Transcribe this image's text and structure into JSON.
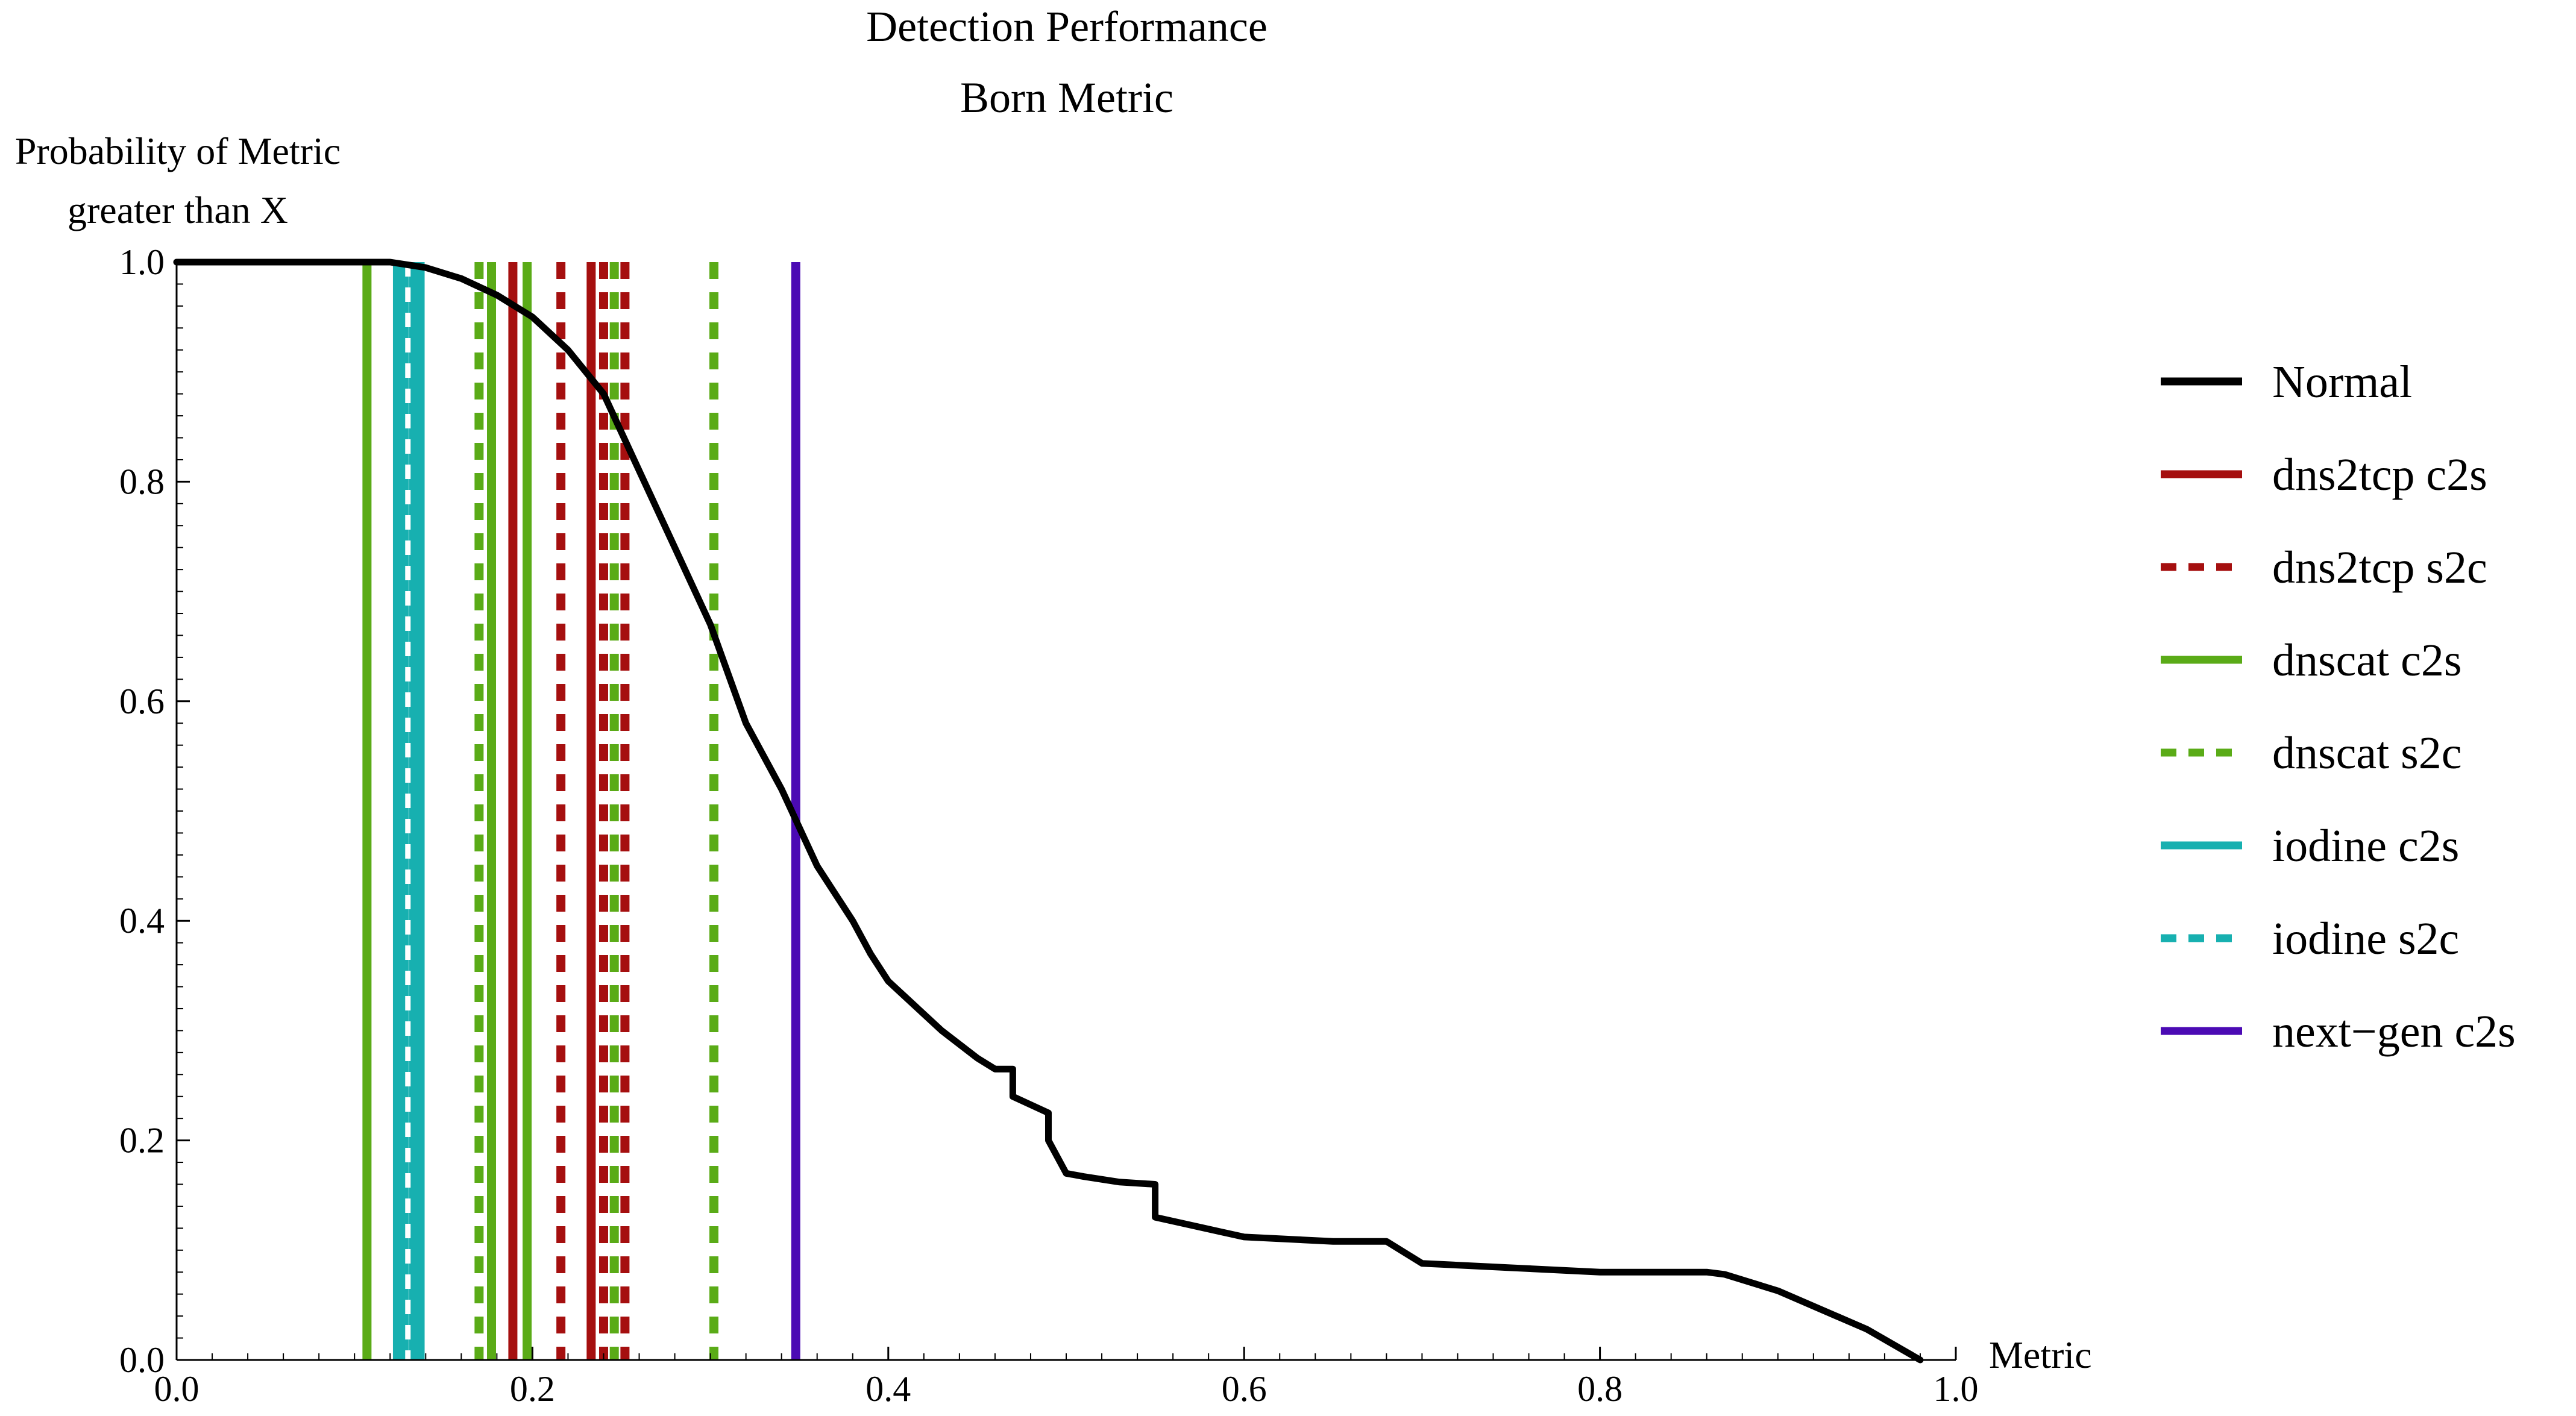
{
  "chart_data": {
    "type": "line",
    "title": "Detection Performance",
    "subtitle": "Born Metric",
    "xlabel": "Metric",
    "ylabel_line1": "Probability of Metric",
    "ylabel_line2": "greater than X",
    "xlim": [
      0,
      1.0
    ],
    "ylim": [
      0,
      1.0
    ],
    "x_ticks": [
      0.0,
      0.2,
      0.4,
      0.6,
      0.8,
      1.0
    ],
    "x_tick_labels": [
      "0.0",
      "0.2",
      "0.4",
      "0.6",
      "0.8",
      "1.0"
    ],
    "y_ticks": [
      0.0,
      0.2,
      0.4,
      0.6,
      0.8,
      1.0
    ],
    "y_tick_labels": [
      "0.0",
      "0.2",
      "0.4",
      "0.6",
      "0.8",
      "1.0"
    ],
    "grid": false,
    "legend_position": "right",
    "legend": [
      {
        "name": "Normal",
        "color": "#000000",
        "dashed": false
      },
      {
        "name": "dns2tcp c2s",
        "color": "#a50f0f",
        "dashed": false
      },
      {
        "name": "dns2tcp s2c",
        "color": "#a50f0f",
        "dashed": true
      },
      {
        "name": "dnscat c2s",
        "color": "#5aab17",
        "dashed": false
      },
      {
        "name": "dnscat s2c",
        "color": "#5aab17",
        "dashed": true
      },
      {
        "name": "iodine c2s",
        "color": "#17b0b0",
        "dashed": false
      },
      {
        "name": "iodine s2c",
        "color": "#17b0b0",
        "dashed": true
      },
      {
        "name": "next−gen c2s",
        "color": "#4b0ab4",
        "dashed": false
      }
    ],
    "normal_curve": {
      "x": [
        0.0,
        0.1,
        0.12,
        0.14,
        0.16,
        0.18,
        0.2,
        0.22,
        0.24,
        0.26,
        0.28,
        0.3,
        0.32,
        0.34,
        0.36,
        0.38,
        0.39,
        0.4,
        0.41,
        0.43,
        0.45,
        0.46,
        0.47,
        0.47,
        0.49,
        0.49,
        0.5,
        0.51,
        0.53,
        0.55,
        0.55,
        0.6,
        0.65,
        0.68,
        0.7,
        0.75,
        0.8,
        0.86,
        0.87,
        0.9,
        0.95,
        0.98
      ],
      "y": [
        1.0,
        1.0,
        1.0,
        0.995,
        0.985,
        0.97,
        0.95,
        0.92,
        0.88,
        0.81,
        0.74,
        0.67,
        0.58,
        0.52,
        0.45,
        0.4,
        0.37,
        0.345,
        0.33,
        0.3,
        0.275,
        0.265,
        0.265,
        0.24,
        0.225,
        0.2,
        0.17,
        0.167,
        0.162,
        0.16,
        0.13,
        0.112,
        0.108,
        0.108,
        0.088,
        0.084,
        0.08,
        0.08,
        0.078,
        0.063,
        0.028,
        0.0
      ]
    },
    "detection_lines": [
      {
        "name": "dnscat c2s",
        "x": 0.107
      },
      {
        "name": "iodine c2s",
        "x": 0.126
      },
      {
        "name": "iodine c2s",
        "x": 0.135
      },
      {
        "name": "iodine s2c",
        "x": 0.13
      },
      {
        "name": "dnscat s2c",
        "x": 0.17
      },
      {
        "name": "dnscat c2s",
        "x": 0.177
      },
      {
        "name": "dns2tcp c2s",
        "x": 0.189
      },
      {
        "name": "dnscat c2s",
        "x": 0.197
      },
      {
        "name": "dns2tcp s2c",
        "x": 0.216
      },
      {
        "name": "dns2tcp c2s",
        "x": 0.233
      },
      {
        "name": "dns2tcp s2c",
        "x": 0.24
      },
      {
        "name": "dnscat s2c",
        "x": 0.246
      },
      {
        "name": "dns2tcp s2c",
        "x": 0.252
      },
      {
        "name": "dnscat s2c",
        "x": 0.302
      },
      {
        "name": "next−gen c2s",
        "x": 0.348
      }
    ]
  }
}
